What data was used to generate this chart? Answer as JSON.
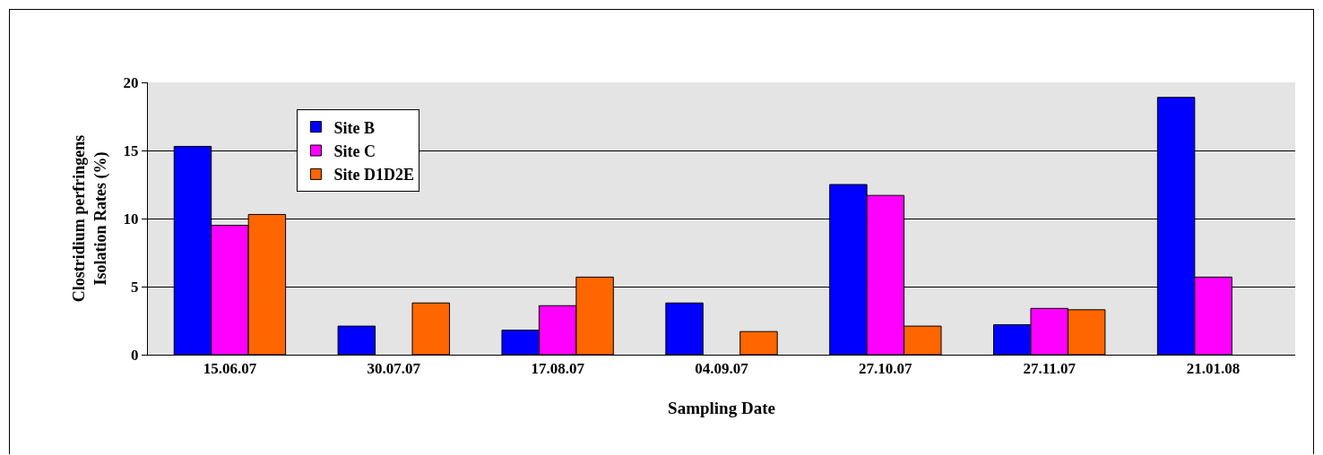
{
  "chart_data": {
    "type": "bar",
    "xlabel": "Sampling Date",
    "ylabel": "Clostridium perfringens Isolation Rates (%)",
    "categories": [
      "15.06.07",
      "30.07.07",
      "17.08.07",
      "04.09.07",
      "27.10.07",
      "27.11.07",
      "21.01.08"
    ],
    "series": [
      {
        "name": "Site B",
        "color": "#0000ff",
        "values": [
          15.3,
          2.1,
          1.8,
          3.8,
          12.5,
          2.2,
          18.9
        ]
      },
      {
        "name": "Site C",
        "color": "#ff00ff",
        "values": [
          9.5,
          null,
          3.6,
          null,
          11.7,
          3.4,
          5.7
        ]
      },
      {
        "name": "Site D1D2E",
        "color": "#ff6600",
        "values": [
          10.3,
          3.8,
          5.7,
          1.7,
          2.1,
          3.3,
          null
        ]
      }
    ],
    "ylim": [
      0,
      20
    ],
    "yticks": [
      0,
      5,
      10,
      15,
      20
    ],
    "grid": "y",
    "legend": "top left"
  }
}
